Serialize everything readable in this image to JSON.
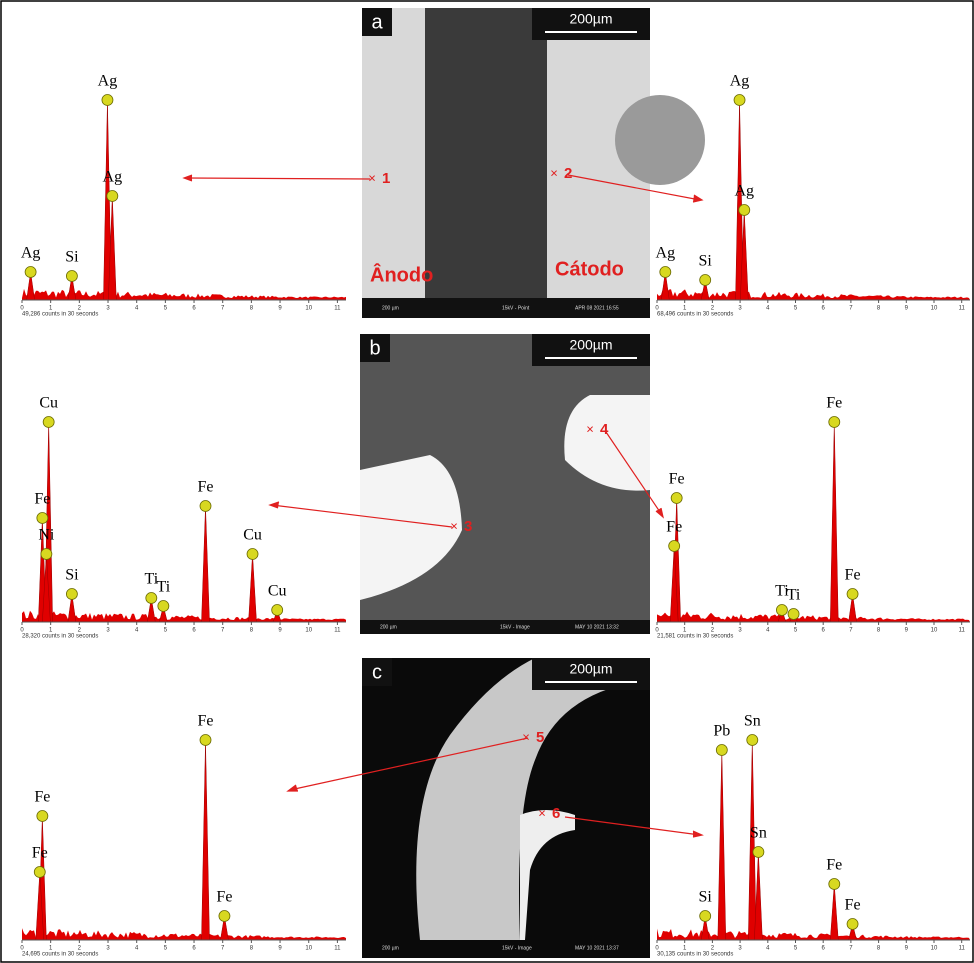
{
  "chart_data": [
    {
      "type": "spectrum",
      "caption": "49,286 counts in 30 seconds",
      "xlim": [
        0,
        11.3
      ],
      "xticks": [
        0,
        1,
        2,
        3,
        4,
        5,
        6,
        7,
        8,
        9,
        10,
        11
      ],
      "ylim": [
        0,
        100
      ],
      "peaks": [
        {
          "element": "Ag",
          "x": 0.3,
          "height": 14
        },
        {
          "element": "Si",
          "x": 1.74,
          "height": 12
        },
        {
          "element": "Ag",
          "x": 2.98,
          "height": 100
        },
        {
          "element": "Ag",
          "x": 3.15,
          "height": 52
        }
      ]
    },
    {
      "type": "spectrum",
      "caption": "68,496 counts in 30 seconds",
      "xlim": [
        0,
        11.3
      ],
      "xticks": [
        0,
        1,
        2,
        3,
        4,
        5,
        6,
        7,
        8,
        9,
        10,
        11
      ],
      "ylim": [
        0,
        100
      ],
      "peaks": [
        {
          "element": "Ag",
          "x": 0.3,
          "height": 14
        },
        {
          "element": "Si",
          "x": 1.74,
          "height": 10
        },
        {
          "element": "Ag",
          "x": 2.98,
          "height": 100
        },
        {
          "element": "Ag",
          "x": 3.15,
          "height": 45
        }
      ]
    },
    {
      "type": "spectrum",
      "caption": "28,320 counts in 30 seconds",
      "xlim": [
        0,
        11.3
      ],
      "xticks": [
        0,
        1,
        2,
        3,
        4,
        5,
        6,
        7,
        8,
        9,
        10,
        11
      ],
      "ylim": [
        0,
        100
      ],
      "peaks": [
        {
          "element": "Cu",
          "x": 0.93,
          "height": 100
        },
        {
          "element": "Fe",
          "x": 0.71,
          "height": 52
        },
        {
          "element": "Ni",
          "x": 0.85,
          "height": 34
        },
        {
          "element": "Si",
          "x": 1.74,
          "height": 14
        },
        {
          "element": "Ti",
          "x": 4.51,
          "height": 12
        },
        {
          "element": "Ti",
          "x": 4.93,
          "height": 8
        },
        {
          "element": "Fe",
          "x": 6.4,
          "height": 58
        },
        {
          "element": "Cu",
          "x": 8.04,
          "height": 34
        },
        {
          "element": "Cu",
          "x": 8.9,
          "height": 6
        }
      ]
    },
    {
      "type": "spectrum",
      "caption": "21,581 counts in 30 seconds",
      "xlim": [
        0,
        11.3
      ],
      "xticks": [
        0,
        1,
        2,
        3,
        4,
        5,
        6,
        7,
        8,
        9,
        10,
        11
      ],
      "ylim": [
        0,
        100
      ],
      "peaks": [
        {
          "element": "Fe",
          "x": 0.71,
          "height": 62
        },
        {
          "element": "Fe",
          "x": 0.62,
          "height": 38
        },
        {
          "element": "Ti",
          "x": 4.51,
          "height": 6
        },
        {
          "element": "Ti",
          "x": 4.93,
          "height": 4
        },
        {
          "element": "Fe",
          "x": 6.4,
          "height": 100
        },
        {
          "element": "Fe",
          "x": 7.06,
          "height": 14
        }
      ]
    },
    {
      "type": "spectrum",
      "caption": "24,695 counts in 30 seconds",
      "xlim": [
        0,
        11.3
      ],
      "xticks": [
        0,
        1,
        2,
        3,
        4,
        5,
        6,
        7,
        8,
        9,
        10,
        11
      ],
      "ylim": [
        0,
        100
      ],
      "peaks": [
        {
          "element": "Fe",
          "x": 0.71,
          "height": 62
        },
        {
          "element": "Fe",
          "x": 0.62,
          "height": 34
        },
        {
          "element": "Fe",
          "x": 6.4,
          "height": 100
        },
        {
          "element": "Fe",
          "x": 7.06,
          "height": 12
        }
      ]
    },
    {
      "type": "spectrum",
      "caption": "30,135 counts in 30 seconds",
      "xlim": [
        0,
        11.3
      ],
      "xticks": [
        0,
        1,
        2,
        3,
        4,
        5,
        6,
        7,
        8,
        9,
        10,
        11
      ],
      "ylim": [
        0,
        100
      ],
      "peaks": [
        {
          "element": "Si",
          "x": 1.74,
          "height": 12
        },
        {
          "element": "Pb",
          "x": 2.34,
          "height": 95
        },
        {
          "element": "Sn",
          "x": 3.44,
          "height": 100
        },
        {
          "element": "Sn",
          "x": 3.66,
          "height": 44
        },
        {
          "element": "Fe",
          "x": 6.4,
          "height": 28
        },
        {
          "element": "Fe",
          "x": 7.06,
          "height": 8
        }
      ]
    }
  ],
  "images": [
    {
      "label": "a",
      "scale": "200µm",
      "points": [
        "1",
        "2"
      ],
      "regions": [
        "Ânodo",
        "Cátodo"
      ],
      "footer": [
        "200 µm",
        "15kV - Point",
        "APR 08 2021 16:55"
      ]
    },
    {
      "label": "b",
      "scale": "200µm",
      "points": [
        "3",
        "4"
      ],
      "regions": [],
      "footer": [
        "200 µm",
        "15kV - Image",
        "MAY 10 2021 13:32"
      ]
    },
    {
      "label": "c",
      "scale": "200µm",
      "points": [
        "5",
        "6"
      ],
      "regions": [],
      "footer": [
        "200 µm",
        "15kV - Image",
        "MAY 10 2021 13:37"
      ]
    }
  ]
}
